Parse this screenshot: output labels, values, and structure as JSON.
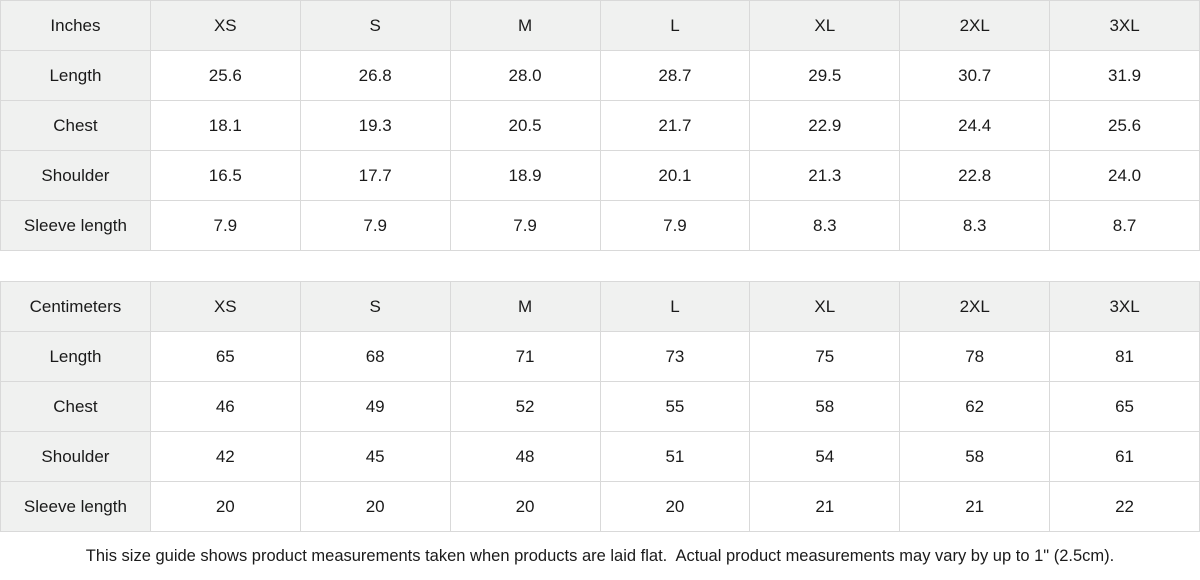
{
  "page": {
    "background": "#ffffff",
    "text_color": "#1a1a1a",
    "header_fill": "#f0f1f0",
    "border_color": "#d9d9d9"
  },
  "size_guide": {
    "tables": [
      {
        "unit_label": "Inches",
        "sizes": [
          "XS",
          "S",
          "M",
          "L",
          "XL",
          "2XL",
          "3XL"
        ],
        "rows": [
          {
            "label": "Length",
            "values": [
              "25.6",
              "26.8",
              "28.0",
              "28.7",
              "29.5",
              "30.7",
              "31.9"
            ]
          },
          {
            "label": "Chest",
            "values": [
              "18.1",
              "19.3",
              "20.5",
              "21.7",
              "22.9",
              "24.4",
              "25.6"
            ]
          },
          {
            "label": "Shoulder",
            "values": [
              "16.5",
              "17.7",
              "18.9",
              "20.1",
              "21.3",
              "22.8",
              "24.0"
            ]
          },
          {
            "label": "Sleeve length",
            "values": [
              "7.9",
              "7.9",
              "7.9",
              "7.9",
              "8.3",
              "8.3",
              "8.7"
            ]
          }
        ]
      },
      {
        "unit_label": "Centimeters",
        "sizes": [
          "XS",
          "S",
          "M",
          "L",
          "XL",
          "2XL",
          "3XL"
        ],
        "rows": [
          {
            "label": "Length",
            "values": [
              "65",
              "68",
              "71",
              "73",
              "75",
              "78",
              "81"
            ]
          },
          {
            "label": "Chest",
            "values": [
              "46",
              "49",
              "52",
              "55",
              "58",
              "62",
              "65"
            ]
          },
          {
            "label": "Shoulder",
            "values": [
              "42",
              "45",
              "48",
              "51",
              "54",
              "58",
              "61"
            ]
          },
          {
            "label": "Sleeve length",
            "values": [
              "20",
              "20",
              "20",
              "20",
              "21",
              "21",
              "22"
            ]
          }
        ]
      }
    ],
    "footnote": "This size guide shows product measurements taken when products are laid flat.  Actual product measurements may vary by up to 1\" (2.5cm)."
  }
}
